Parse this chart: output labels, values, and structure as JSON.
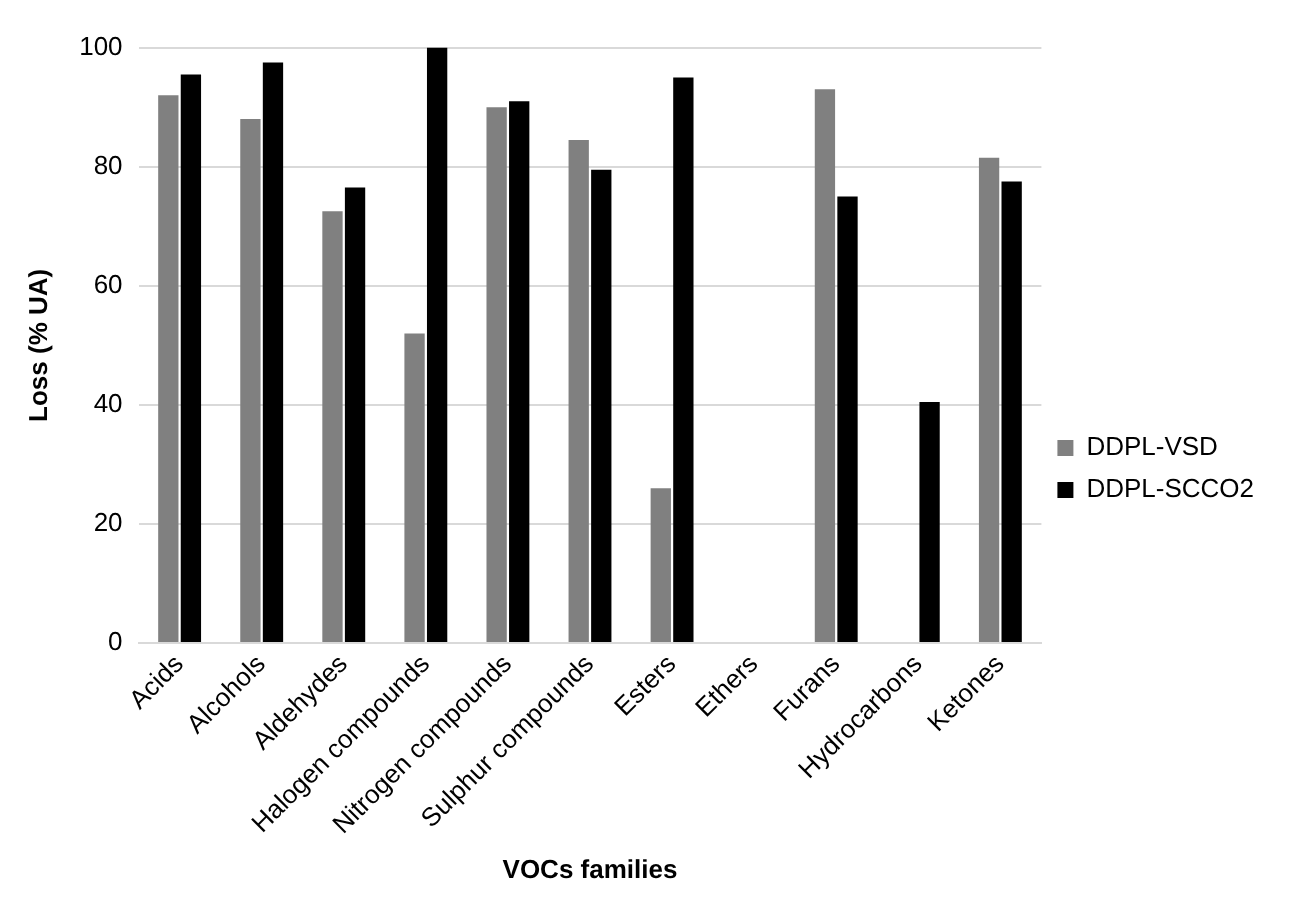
{
  "chart_data": {
    "type": "bar",
    "xlabel": "VOCs families",
    "ylabel": "Loss (% UA)",
    "categories": [
      "Acids",
      "Alcohols",
      "Aldehydes",
      "Halogen compounds",
      "Nitrogen compounds",
      "Sulphur compounds",
      "Esters",
      "Ethers",
      "Furans",
      "Hydrocarbons",
      "Ketones"
    ],
    "series": [
      {
        "name": "DDPL-VSD",
        "color": "#808080",
        "values": [
          92,
          88,
          72.5,
          52,
          90,
          84.5,
          26,
          null,
          93,
          null,
          81.5
        ]
      },
      {
        "name": "DDPL-SCCO2",
        "color": "#000000",
        "values": [
          95.5,
          97.5,
          76.5,
          100,
          91,
          79.5,
          95,
          null,
          75,
          40.5,
          77.5
        ]
      }
    ],
    "ylim": [
      0,
      100
    ],
    "yticks": [
      0,
      20,
      40,
      60,
      80,
      100
    ],
    "grid": "y",
    "legend": "right"
  }
}
